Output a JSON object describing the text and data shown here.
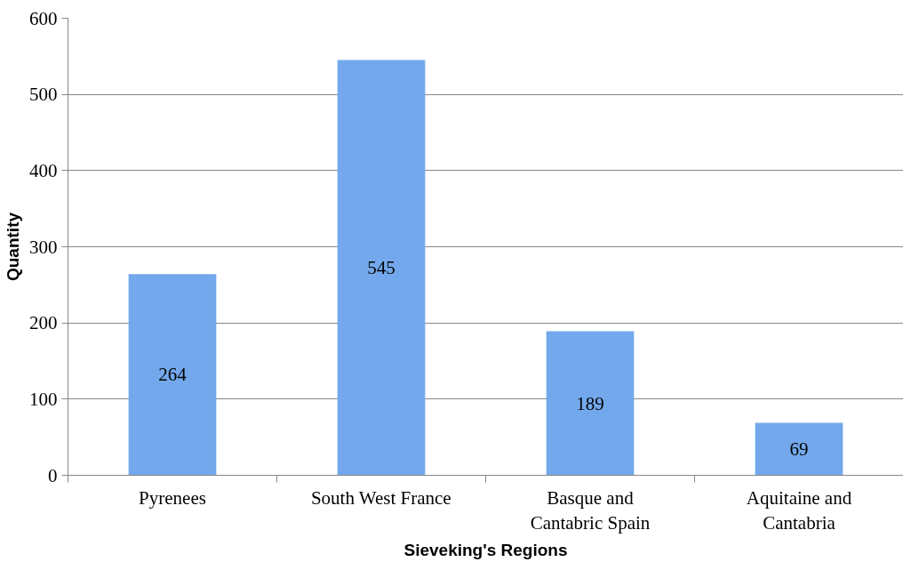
{
  "chart_data": {
    "type": "bar",
    "xlabel": "Sieveking's Regions",
    "ylabel": "Quantity",
    "categories": [
      "Pyrenees",
      "South West France",
      "Basque and Cantabric Spain",
      "Aquitaine and Cantabria"
    ],
    "values": [
      264,
      545,
      189,
      69
    ],
    "color": "#73a9ec",
    "ylim": [
      0,
      600
    ],
    "yticks": [
      0,
      100,
      200,
      300,
      400,
      500,
      600
    ],
    "grid": "y",
    "data_labels": true
  }
}
